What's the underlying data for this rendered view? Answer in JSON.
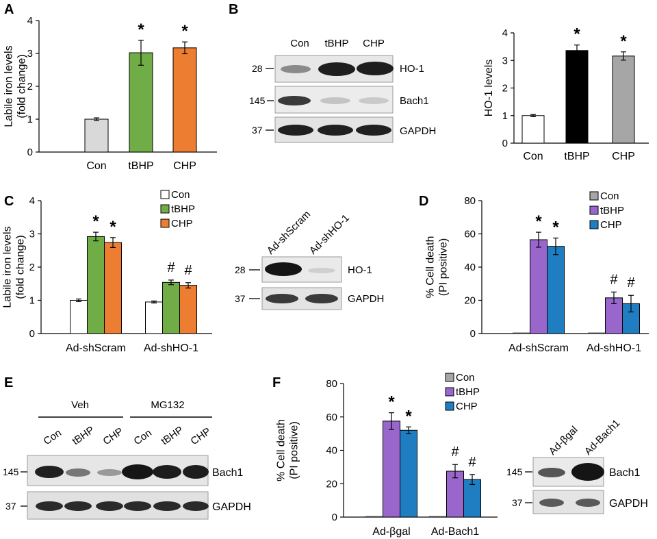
{
  "panels": {
    "A": {
      "letter": "A"
    },
    "B": {
      "letter": "B",
      "blot_lanes": [
        "Con",
        "tBHP",
        "CHP"
      ],
      "rows": [
        {
          "mw": "28",
          "label": "HO-1"
        },
        {
          "mw": "145",
          "label": "Bach1"
        },
        {
          "mw": "37",
          "label": "GAPDH"
        }
      ]
    },
    "C": {
      "letter": "C",
      "blot_lanes": [
        "Ad-shScram",
        "Ad-shHO-1"
      ],
      "rows": [
        {
          "mw": "28",
          "label": "HO-1"
        },
        {
          "mw": "37",
          "label": "GAPDH"
        }
      ]
    },
    "D": {
      "letter": "D"
    },
    "E": {
      "letter": "E",
      "groups": [
        "Veh",
        "MG132"
      ],
      "blot_lanes": [
        "Con",
        "tBHP",
        "CHP",
        "Con",
        "tBHP",
        "CHP"
      ],
      "rows": [
        {
          "mw": "145",
          "label": "Bach1"
        },
        {
          "mw": "37",
          "label": "GAPDH"
        }
      ]
    },
    "F": {
      "letter": "F",
      "blot_lanes": [
        "Ad-βgal",
        "Ad-Bach1"
      ],
      "rows": [
        {
          "mw": "145",
          "label": "Bach1"
        },
        {
          "mw": "37",
          "label": "GAPDH"
        }
      ]
    }
  },
  "chart_data": [
    {
      "id": "A",
      "type": "bar",
      "categories": [
        "Con",
        "tBHP",
        "CHP"
      ],
      "values": [
        1.0,
        3.02,
        3.17
      ],
      "errors": [
        0.04,
        0.38,
        0.18
      ],
      "colors": [
        "#d9d9d9",
        "#70ad47",
        "#ed7d31"
      ],
      "marks": [
        "",
        "*",
        "*"
      ],
      "ylabel_lines": [
        "Labile iron levels",
        "(fold change)"
      ],
      "ylim": [
        0,
        4
      ],
      "yticks": [
        "0",
        "1",
        "2",
        "3",
        "4"
      ]
    },
    {
      "id": "B",
      "type": "bar",
      "categories": [
        "Con",
        "tBHP",
        "CHP"
      ],
      "values": [
        1.0,
        3.36,
        3.16
      ],
      "errors": [
        0.04,
        0.2,
        0.15
      ],
      "colors": [
        "#ffffff",
        "#000000",
        "#a6a6a6"
      ],
      "marks": [
        "",
        "*",
        "*"
      ],
      "ylabel_lines": [
        "HO-1 levels"
      ],
      "ylim": [
        0,
        4
      ],
      "yticks": [
        "0",
        "1",
        "2",
        "3",
        "4"
      ]
    },
    {
      "id": "C",
      "type": "bar",
      "categories": [
        "Ad-shScram",
        "Ad-shHO-1"
      ],
      "series": [
        {
          "name": "Con",
          "color": "#ffffff",
          "values": [
            1.0,
            0.95
          ],
          "errors": [
            0.04,
            0.03
          ],
          "marks": [
            "",
            ""
          ]
        },
        {
          "name": "tBHP",
          "color": "#70ad47",
          "values": [
            2.92,
            1.54
          ],
          "errors": [
            0.13,
            0.07
          ],
          "marks": [
            "*",
            "#"
          ]
        },
        {
          "name": "CHP",
          "color": "#ed7d31",
          "values": [
            2.74,
            1.45
          ],
          "errors": [
            0.15,
            0.08
          ],
          "marks": [
            "*",
            "#"
          ]
        }
      ],
      "ylabel_lines": [
        "Labile iron levels",
        "(fold change)"
      ],
      "ylim": [
        0,
        4
      ],
      "yticks": [
        "0",
        "1",
        "2",
        "3",
        "4"
      ],
      "legend": "top-right"
    },
    {
      "id": "D",
      "type": "bar",
      "categories": [
        "Ad-shScram",
        "Ad-shHO-1"
      ],
      "series": [
        {
          "name": "Con",
          "color": "#a6a6a6",
          "values": [
            0,
            0
          ],
          "errors": [
            0,
            0
          ],
          "marks": [
            "",
            ""
          ]
        },
        {
          "name": "tBHP",
          "color": "#9966cc",
          "values": [
            56.5,
            21.5
          ],
          "errors": [
            4.5,
            3.5
          ],
          "marks": [
            "*",
            "#"
          ]
        },
        {
          "name": "CHP",
          "color": "#1f7ec2",
          "values": [
            52.5,
            18.0
          ],
          "errors": [
            5.0,
            5.0
          ],
          "marks": [
            "*",
            "#"
          ]
        }
      ],
      "ylabel_lines": [
        "% Cell death",
        "(PI positive)"
      ],
      "ylim": [
        0,
        80
      ],
      "yticks": [
        "0",
        "20",
        "40",
        "60",
        "80"
      ],
      "legend": "top-right"
    },
    {
      "id": "F",
      "type": "bar",
      "categories": [
        "Ad-βgal",
        "Ad-Bach1"
      ],
      "series": [
        {
          "name": "Con",
          "color": "#a6a6a6",
          "values": [
            0,
            0
          ],
          "errors": [
            0,
            0
          ],
          "marks": [
            "",
            ""
          ]
        },
        {
          "name": "tBHP",
          "color": "#9966cc",
          "values": [
            57.5,
            27.5
          ],
          "errors": [
            5.0,
            4.0
          ],
          "marks": [
            "*",
            "#"
          ]
        },
        {
          "name": "CHP",
          "color": "#1f7ec2",
          "values": [
            52.0,
            22.5
          ],
          "errors": [
            2.0,
            3.0
          ],
          "marks": [
            "*",
            "#"
          ]
        }
      ],
      "ylabel_lines": [
        "% Cell death",
        "(PI positive)"
      ],
      "ylim": [
        0,
        80
      ],
      "yticks": [
        "0",
        "20",
        "40",
        "60",
        "80"
      ],
      "legend": "top-right"
    }
  ]
}
